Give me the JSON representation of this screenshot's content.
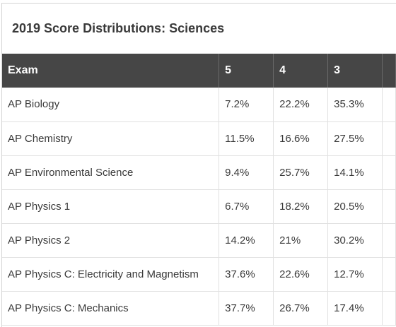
{
  "table": {
    "caption": "2019 Score Distributions: Sciences",
    "headers": [
      "Exam",
      "5",
      "4",
      "3"
    ],
    "rows": [
      {
        "exam": "AP Biology",
        "s5": "7.2%",
        "s4": "22.2%",
        "s3": "35.3%"
      },
      {
        "exam": "AP Chemistry",
        "s5": "11.5%",
        "s4": "16.6%",
        "s3": "27.5%"
      },
      {
        "exam": "AP Environmental Science",
        "s5": "9.4%",
        "s4": "25.7%",
        "s3": "14.1%"
      },
      {
        "exam": "AP Physics 1",
        "s5": "6.7%",
        "s4": "18.2%",
        "s3": "20.5%"
      },
      {
        "exam": "AP Physics 2",
        "s5": "14.2%",
        "s4": "21%",
        "s3": "30.2%"
      },
      {
        "exam": "AP Physics C: Electricity and Magnetism",
        "s5": "37.6%",
        "s4": "22.6%",
        "s3": "12.7%"
      },
      {
        "exam": "AP Physics C: Mechanics",
        "s5": "37.7%",
        "s4": "26.7%",
        "s3": "17.4%"
      }
    ]
  },
  "colors": {
    "header_bg": "#464646",
    "header_text": "#ffffff",
    "body_text": "#3a3a3a",
    "grid_line": "#e1e1e1"
  }
}
